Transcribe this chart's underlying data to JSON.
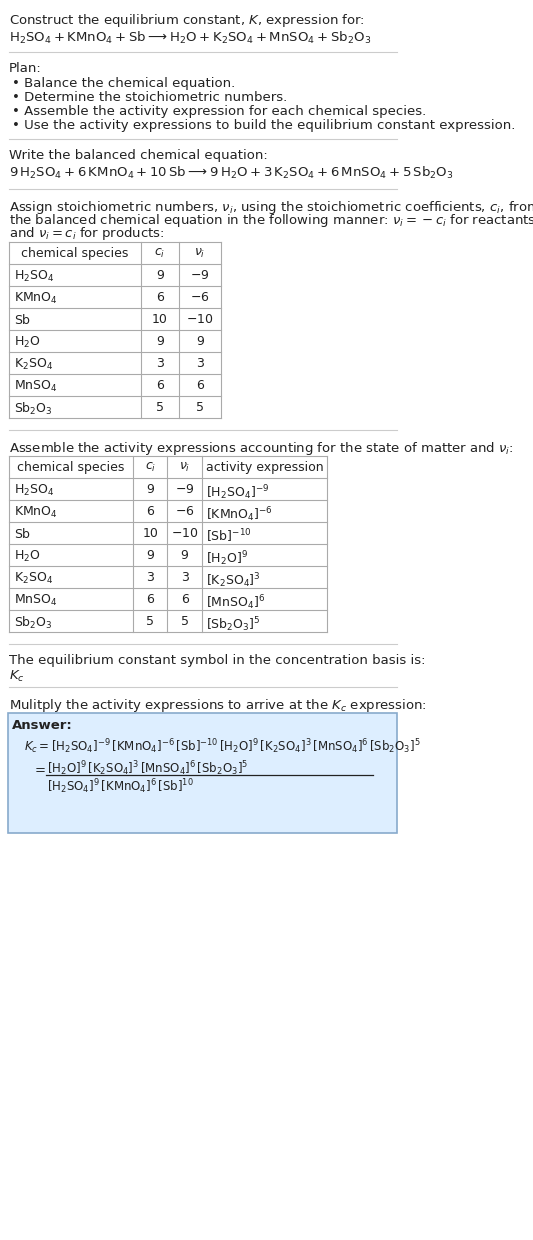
{
  "bg_color": "#ffffff",
  "answer_box_color": "#ddeeff",
  "answer_box_border": "#88aacc",
  "font_color": "#222222",
  "table_border_color": "#aaaaaa",
  "title_text": "Construct the equilibrium constant, $K$, expression for:",
  "reaction_unbalanced": "$\\mathrm{H_2SO_4 + KMnO_4 + Sb} \\longrightarrow \\mathrm{H_2O + K_2SO_4 + MnSO_4 + Sb_2O_3}$",
  "plan_header": "Plan:",
  "plan_items": [
    "Balance the chemical equation.",
    "Determine the stoichiometric numbers.",
    "Assemble the activity expression for each chemical species.",
    "Use the activity expressions to build the equilibrium constant expression."
  ],
  "balanced_header": "Write the balanced chemical equation:",
  "balanced_eq": "$9\\,\\mathrm{H_2SO_4} + 6\\,\\mathrm{KMnO_4} + 10\\,\\mathrm{Sb} \\longrightarrow 9\\,\\mathrm{H_2O} + 3\\,\\mathrm{K_2SO_4} + 6\\,\\mathrm{MnSO_4} + 5\\,\\mathrm{Sb_2O_3}$",
  "stoich_header": "Assign stoichiometric numbers, $\\nu_i$, using the stoichiometric coefficients, $c_i$, from the balanced chemical equation in the following manner: $\\nu_i = -c_i$ for reactants and $\\nu_i = c_i$ for products:",
  "stoich_cols": [
    "chemical species",
    "$c_i$",
    "$\\nu_i$"
  ],
  "stoich_rows": [
    [
      "$\\mathrm{H_2SO_4}$",
      "9",
      "$-9$"
    ],
    [
      "$\\mathrm{KMnO_4}$",
      "6",
      "$-6$"
    ],
    [
      "$\\mathrm{Sb}$",
      "10",
      "$-10$"
    ],
    [
      "$\\mathrm{H_2O}$",
      "9",
      "9"
    ],
    [
      "$\\mathrm{K_2SO_4}$",
      "3",
      "3"
    ],
    [
      "$\\mathrm{MnSO_4}$",
      "6",
      "6"
    ],
    [
      "$\\mathrm{Sb_2O_3}$",
      "5",
      "5"
    ]
  ],
  "activity_header": "Assemble the activity expressions accounting for the state of matter and $\\nu_i$:",
  "activity_cols": [
    "chemical species",
    "$c_i$",
    "$\\nu_i$",
    "activity expression"
  ],
  "activity_rows": [
    [
      "$\\mathrm{H_2SO_4}$",
      "9",
      "$-9$",
      "$[\\mathrm{H_2SO_4}]^{-9}$"
    ],
    [
      "$\\mathrm{KMnO_4}$",
      "6",
      "$-6$",
      "$[\\mathrm{KMnO_4}]^{-6}$"
    ],
    [
      "$\\mathrm{Sb}$",
      "10",
      "$-10$",
      "$[\\mathrm{Sb}]^{-10}$"
    ],
    [
      "$\\mathrm{H_2O}$",
      "9",
      "9",
      "$[\\mathrm{H_2O}]^{9}$"
    ],
    [
      "$\\mathrm{K_2SO_4}$",
      "3",
      "3",
      "$[\\mathrm{K_2SO_4}]^{3}$"
    ],
    [
      "$\\mathrm{MnSO_4}$",
      "6",
      "6",
      "$[\\mathrm{MnSO_4}]^{6}$"
    ],
    [
      "$\\mathrm{Sb_2O_3}$",
      "5",
      "5",
      "$[\\mathrm{Sb_2O_3}]^{5}$"
    ]
  ],
  "kc_header": "The equilibrium constant symbol in the concentration basis is:",
  "kc_symbol": "$K_c$",
  "multiply_header": "Mulitply the activity expressions to arrive at the $K_c$ expression:",
  "answer_label": "Answer:",
  "kc_line1": "$K_c = [\\mathrm{H_2SO_4}]^{-9}\\,[\\mathrm{KMnO_4}]^{-6}\\,[\\mathrm{Sb}]^{-10}\\,[\\mathrm{H_2O}]^{9}\\,[\\mathrm{K_2SO_4}]^{3}\\,[\\mathrm{MnSO_4}]^{6}\\,[\\mathrm{Sb_2O_3}]^{5}$",
  "kc_line2_num": "$[\\mathrm{H_2O}]^{9}\\,[\\mathrm{K_2SO_4}]^{3}\\,[\\mathrm{MnSO_4}]^{6}\\,[\\mathrm{Sb_2O_3}]^{5}$",
  "kc_line2_den": "$[\\mathrm{H_2SO_4}]^{9}\\,[\\mathrm{KMnO_4}]^{6}\\,[\\mathrm{Sb}]^{10}$"
}
